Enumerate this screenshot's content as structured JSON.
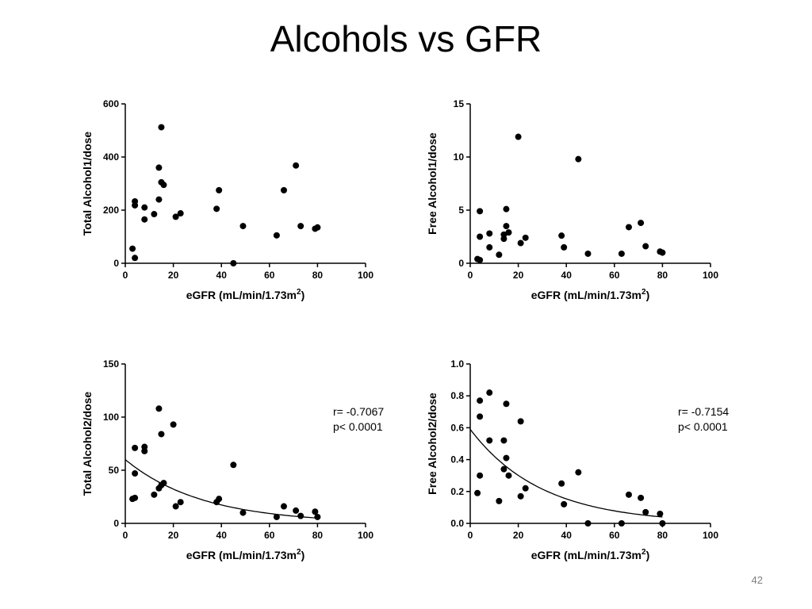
{
  "slide": {
    "title": "Alcohols vs GFR",
    "page_number": "42"
  },
  "chart_data": [
    {
      "type": "scatter",
      "xlabel": "eGFR (mL/min/1.73m",
      "xlabel_superscript": "2",
      "xlabel_close": ")",
      "ylabel": "Total Alcohol1/dose",
      "xlim": [
        0,
        100
      ],
      "ylim": [
        0,
        600
      ],
      "xticks": [
        0,
        20,
        40,
        60,
        80,
        100
      ],
      "yticks": [
        0,
        200,
        400,
        600
      ],
      "grid": false,
      "points": [
        [
          3,
          55
        ],
        [
          4,
          20
        ],
        [
          4,
          218
        ],
        [
          4,
          233
        ],
        [
          8,
          210
        ],
        [
          8,
          165
        ],
        [
          12,
          185
        ],
        [
          14,
          360
        ],
        [
          14,
          240
        ],
        [
          15,
          512
        ],
        [
          15,
          305
        ],
        [
          16,
          295
        ],
        [
          21,
          175
        ],
        [
          23,
          188
        ],
        [
          38,
          205
        ],
        [
          39,
          275
        ],
        [
          45,
          0
        ],
        [
          49,
          140
        ],
        [
          63,
          105
        ],
        [
          66,
          275
        ],
        [
          71,
          368
        ],
        [
          73,
          140
        ],
        [
          79,
          130
        ],
        [
          80,
          135
        ]
      ]
    },
    {
      "type": "scatter",
      "xlabel": "eGFR (mL/min/1.73m",
      "xlabel_superscript": "2",
      "xlabel_close": ")",
      "ylabel": "Free Alcohol1/dose",
      "xlim": [
        0,
        100
      ],
      "ylim": [
        0,
        15
      ],
      "xticks": [
        0,
        20,
        40,
        60,
        80,
        100
      ],
      "yticks": [
        0,
        5,
        10,
        15
      ],
      "grid": false,
      "points": [
        [
          3,
          0.4
        ],
        [
          4,
          0.3
        ],
        [
          4,
          4.9
        ],
        [
          4,
          2.5
        ],
        [
          8,
          2.8
        ],
        [
          8,
          1.5
        ],
        [
          12,
          0.8
        ],
        [
          14,
          2.3
        ],
        [
          14,
          2.7
        ],
        [
          15,
          5.1
        ],
        [
          15,
          3.5
        ],
        [
          16,
          2.9
        ],
        [
          20,
          11.9
        ],
        [
          21,
          1.9
        ],
        [
          23,
          2.4
        ],
        [
          38,
          2.6
        ],
        [
          39,
          1.5
        ],
        [
          45,
          9.8
        ],
        [
          49,
          0.9
        ],
        [
          63,
          0.9
        ],
        [
          66,
          3.4
        ],
        [
          71,
          3.8
        ],
        [
          73,
          1.6
        ],
        [
          79,
          1.1
        ],
        [
          80,
          1.0
        ]
      ]
    },
    {
      "type": "scatter",
      "xlabel": "eGFR (mL/min/1.73m",
      "xlabel_superscript": "2",
      "xlabel_close": ")",
      "ylabel": "Total Alcohol2/dose",
      "xlim": [
        0,
        100
      ],
      "ylim": [
        0,
        150
      ],
      "xticks": [
        0,
        20,
        40,
        60,
        80,
        100
      ],
      "yticks": [
        0,
        50,
        100,
        150
      ],
      "grid": false,
      "stats": {
        "r": "r= -0.7067",
        "p": "p< 0.0001"
      },
      "fit": {
        "kind": "exponential",
        "y0": 60,
        "y_at_80": 5
      },
      "points": [
        [
          3,
          23
        ],
        [
          4,
          24
        ],
        [
          4,
          71
        ],
        [
          4,
          47
        ],
        [
          8,
          72
        ],
        [
          8,
          68
        ],
        [
          12,
          27
        ],
        [
          14,
          33
        ],
        [
          14,
          108
        ],
        [
          15,
          84
        ],
        [
          15,
          36
        ],
        [
          16,
          38
        ],
        [
          20,
          93
        ],
        [
          21,
          16
        ],
        [
          23,
          20
        ],
        [
          38,
          20
        ],
        [
          39,
          23
        ],
        [
          45,
          55
        ],
        [
          49,
          10
        ],
        [
          63,
          6
        ],
        [
          66,
          16
        ],
        [
          71,
          12
        ],
        [
          73,
          7
        ],
        [
          79,
          11
        ],
        [
          80,
          6
        ]
      ]
    },
    {
      "type": "scatter",
      "xlabel": "eGFR (mL/min/1.73m",
      "xlabel_superscript": "2",
      "xlabel_close": ")",
      "ylabel": "Free Alcohol2/dose",
      "xlim": [
        0,
        100
      ],
      "ylim": [
        0,
        1.0
      ],
      "xticks": [
        0,
        20,
        40,
        60,
        80,
        100
      ],
      "yticks": [
        0.0,
        0.2,
        0.4,
        0.6,
        0.8,
        1.0
      ],
      "ytick_labels": [
        "0.0",
        "0.2",
        "0.4",
        "0.6",
        "0.8",
        "1.0"
      ],
      "grid": false,
      "stats": {
        "r": "r= -0.7154",
        "p": "p< 0.0001"
      },
      "fit": {
        "kind": "exponential",
        "y0": 0.59,
        "y_at_80": 0.04
      },
      "points": [
        [
          3,
          0.19
        ],
        [
          4,
          0.77
        ],
        [
          4,
          0.67
        ],
        [
          4,
          0.3
        ],
        [
          8,
          0.82
        ],
        [
          8,
          0.52
        ],
        [
          12,
          0.14
        ],
        [
          14,
          0.52
        ],
        [
          14,
          0.34
        ],
        [
          15,
          0.75
        ],
        [
          15,
          0.41
        ],
        [
          16,
          0.3
        ],
        [
          21,
          0.64
        ],
        [
          21,
          0.17
        ],
        [
          23,
          0.22
        ],
        [
          38,
          0.25
        ],
        [
          39,
          0.12
        ],
        [
          45,
          0.32
        ],
        [
          49,
          0.0
        ],
        [
          63,
          0.0
        ],
        [
          66,
          0.18
        ],
        [
          71,
          0.16
        ],
        [
          73,
          0.07
        ],
        [
          79,
          0.06
        ],
        [
          80,
          0.0
        ]
      ]
    }
  ]
}
